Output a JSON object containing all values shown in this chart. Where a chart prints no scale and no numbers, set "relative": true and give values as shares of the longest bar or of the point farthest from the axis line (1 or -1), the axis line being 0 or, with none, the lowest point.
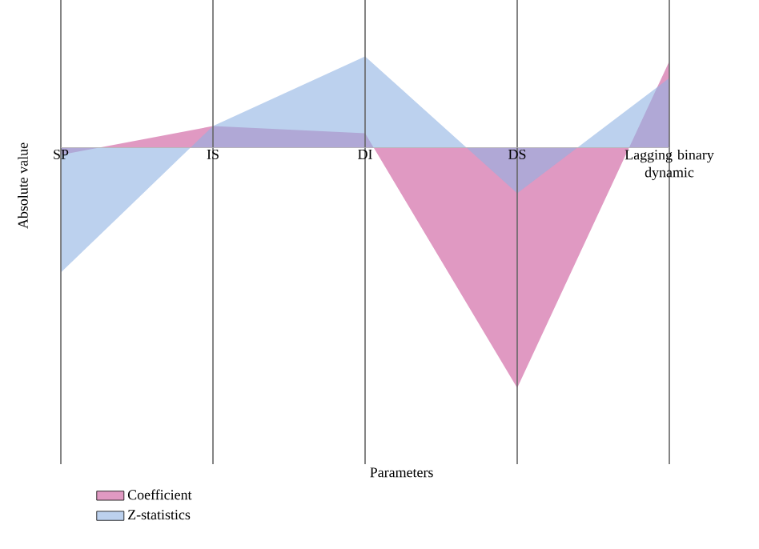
{
  "chart_data": {
    "type": "area",
    "annotations": [
      "Parameters"
    ],
    "ylabel": "Absolute value",
    "categories": [
      "SP",
      "IS",
      "DI",
      "DS",
      "Lagging binary dynamic"
    ],
    "relative": true,
    "grid": "x",
    "legend": "bottom left",
    "series": [
      {
        "name": "Coefficient",
        "color": "#cc5599",
        "values": [
          -0.03,
          0.09,
          0.06,
          -1,
          0.36
        ]
      },
      {
        "name": "Z-statistics",
        "color": "#8fb3e3",
        "values": [
          -0.52,
          0.09,
          0.38,
          -0.19,
          0.29
        ]
      }
    ]
  }
}
